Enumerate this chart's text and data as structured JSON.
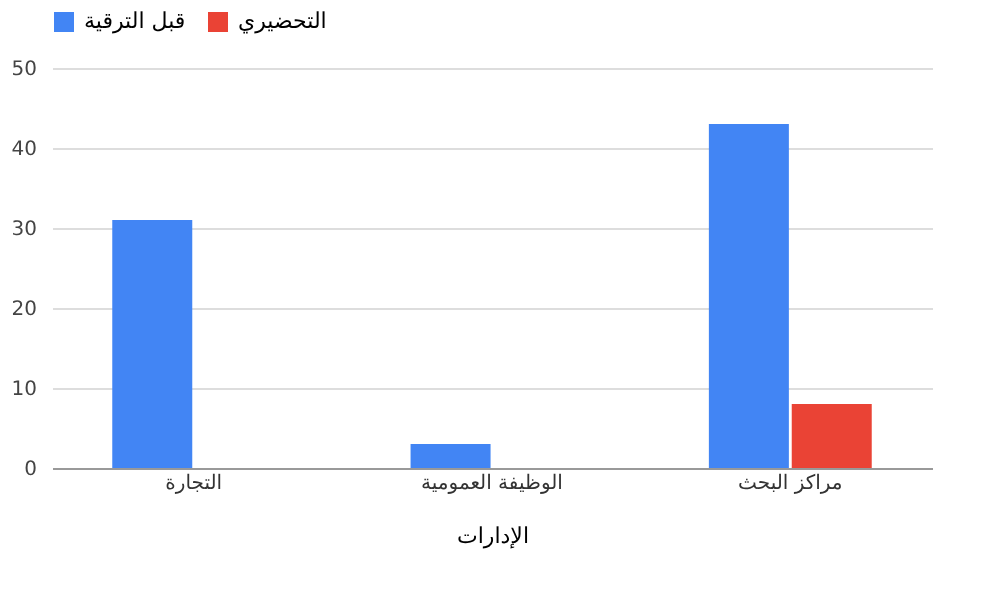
{
  "chart_data": {
    "type": "bar",
    "xlabel": "الإدارات",
    "categories": [
      "التجارة",
      "الوظيفة العمومية",
      "مراكز البحث"
    ],
    "series": [
      {
        "name": "قبل الترقية",
        "color": "#4285f4",
        "values": [
          31,
          3,
          43
        ]
      },
      {
        "name": "التحضيري",
        "color": "#ea4335",
        "values": [
          0,
          0,
          8
        ]
      }
    ],
    "ylim": [
      0,
      50
    ],
    "yticks": [
      0,
      10,
      20,
      30,
      40,
      50
    ],
    "grid": "y",
    "legend": "top"
  }
}
